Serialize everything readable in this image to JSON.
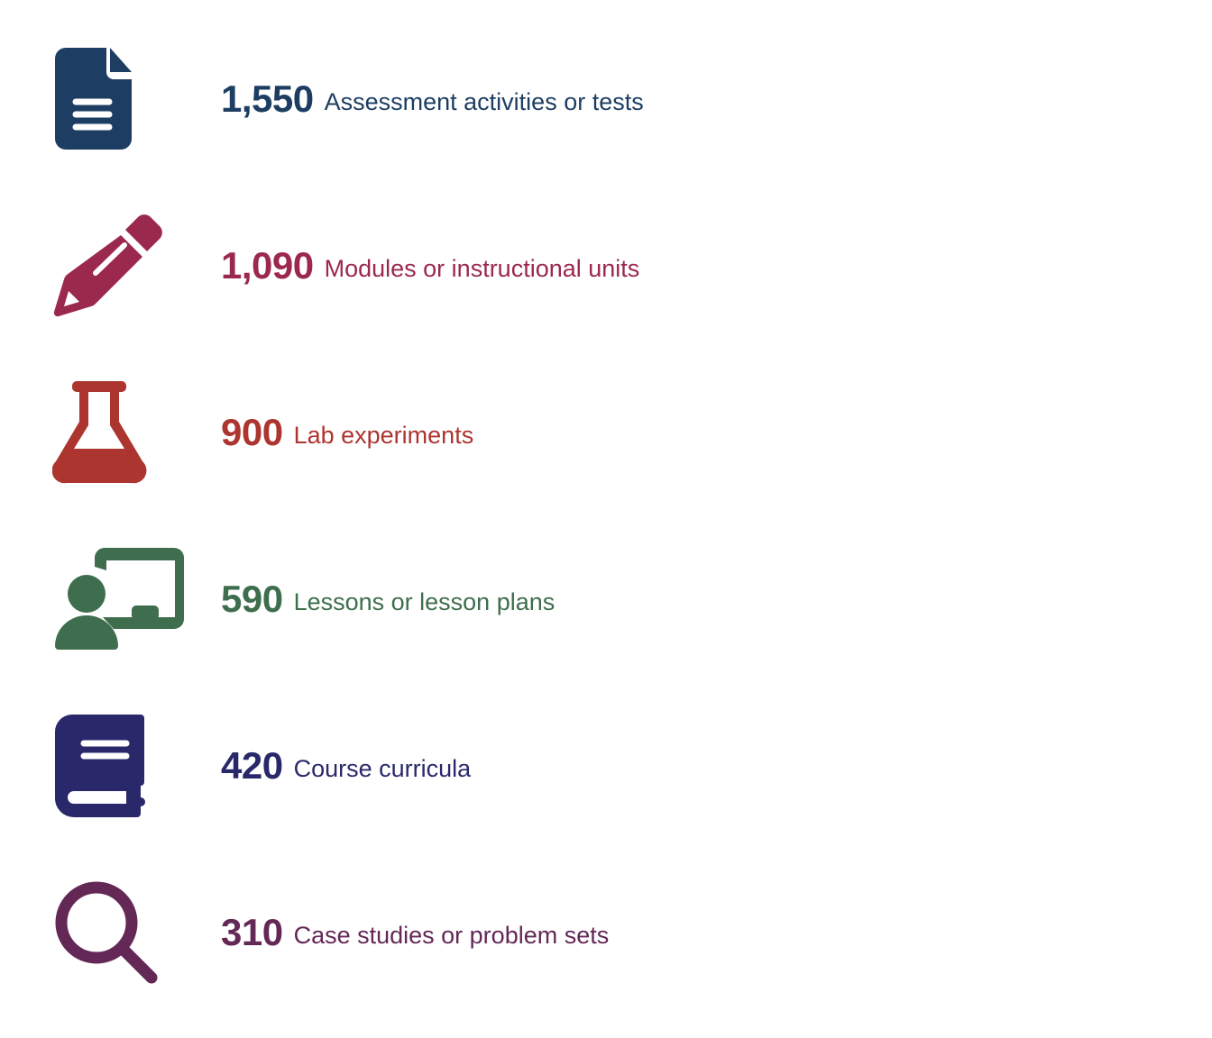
{
  "items": [
    {
      "value": "1,550",
      "label": "Assessment activities or tests",
      "icon": "document-icon",
      "color": "#1d3e62"
    },
    {
      "value": "1,090",
      "label": "Modules or instructional units",
      "icon": "pencil-icon",
      "color": "#9b284d"
    },
    {
      "value": "900",
      "label": "Lab experiments",
      "icon": "flask-icon",
      "color": "#ac3530"
    },
    {
      "value": "590",
      "label": "Lessons or lesson plans",
      "icon": "teacher-board-icon",
      "color": "#3e6e4d"
    },
    {
      "value": "420",
      "label": "Course curricula",
      "icon": "book-icon",
      "color": "#29286b"
    },
    {
      "value": "310",
      "label": "Case studies or problem sets",
      "icon": "magnifier-icon",
      "color": "#632856"
    }
  ]
}
